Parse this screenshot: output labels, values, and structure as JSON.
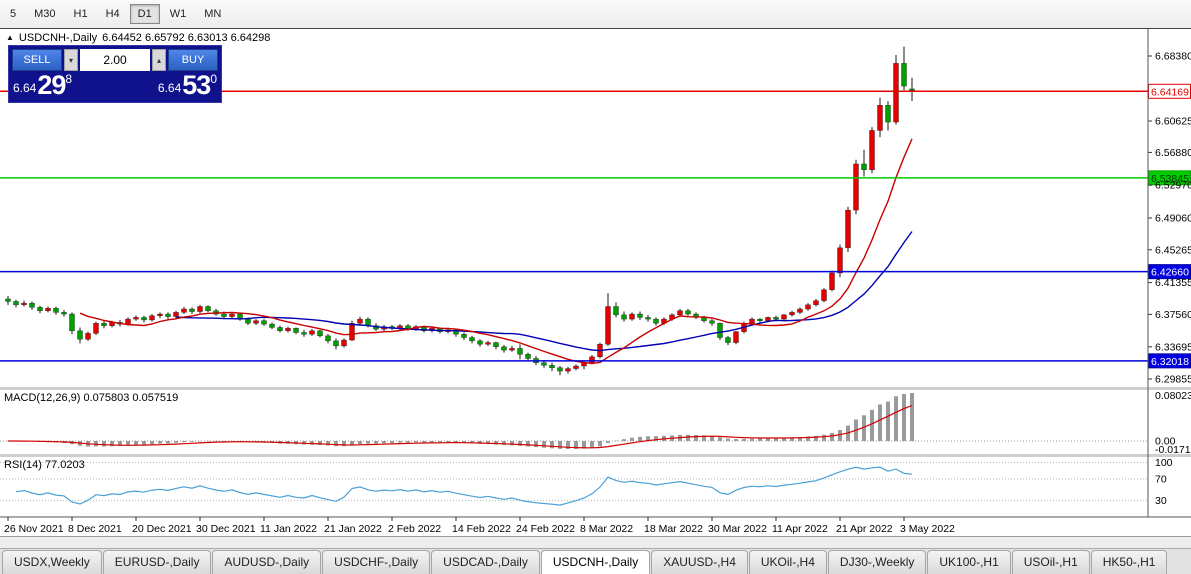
{
  "toolbar": {
    "items": [
      "5",
      "M30",
      "H1",
      "H4",
      "D1",
      "W1",
      "MN"
    ],
    "active": "D1"
  },
  "header": {
    "symbol": "USDCNH-,Daily",
    "ohlc": "6.64452 6.65792 6.63013 6.64298"
  },
  "one_click": {
    "sell_label": "SELL",
    "buy_label": "BUY",
    "volume": "2.00",
    "volume_down_icon": "▾",
    "volume_up_icon": "▴",
    "sell_price_prefix": "6.64",
    "sell_price_big": "29",
    "sell_price_sup": "8",
    "buy_price_prefix": "6.64",
    "buy_price_big": "53",
    "buy_price_sup": "0"
  },
  "tabs": {
    "labels": [
      "USDX,Weekly",
      "EURUSD-,Daily",
      "AUDUSD-,Daily",
      "USDCHF-,Daily",
      "USDCAD-,Daily",
      "USDCNH-,Daily",
      "XAUUSD-,H4",
      "UKOil-,H4",
      "DJ30-,Weekly",
      "UK100-,H1",
      "USOil-,H1",
      "HK50-,H1"
    ],
    "active_index": 5
  },
  "chart_data": {
    "type": "candlestick",
    "title": "USDCNH-,Daily",
    "last_ohlc": [
      6.64452,
      6.65792,
      6.63013,
      6.64298
    ],
    "price_range": [
      6.289,
      6.716
    ],
    "price_ticks": [
      6.6838,
      6.60625,
      6.5688,
      6.5297,
      6.4906,
      6.45265,
      6.41355,
      6.3756,
      6.33695,
      6.29855
    ],
    "hlines": [
      {
        "value": 6.64169,
        "color": "#e80000",
        "label_bg": "#ffffff",
        "label_fg": "#e80000",
        "label_border": "#e80000"
      },
      {
        "value": 6.53845,
        "color": "#00ce00",
        "label_bg": "#00ce00",
        "label_fg": "#003300",
        "label_border": "#00a000"
      },
      {
        "value": 6.4266,
        "color": "#0000e0",
        "label_bg": "#0000e0",
        "label_fg": "#ffffff",
        "label_border": "#0000a0"
      },
      {
        "value": 6.32018,
        "color": "#0000e0",
        "label_bg": "#0000e0",
        "label_fg": "#ffffff",
        "label_border": "#0000a0"
      }
    ],
    "date_ticks": [
      {
        "i": 0,
        "label": "26 Nov 2021"
      },
      {
        "i": 8,
        "label": "8 Dec 2021"
      },
      {
        "i": 16,
        "label": "20 Dec 2021"
      },
      {
        "i": 24,
        "label": "30 Dec 2021"
      },
      {
        "i": 32,
        "label": "11 Jan 2022"
      },
      {
        "i": 40,
        "label": "21 Jan 2022"
      },
      {
        "i": 48,
        "label": "2 Feb 2022"
      },
      {
        "i": 56,
        "label": "14 Feb 2022"
      },
      {
        "i": 64,
        "label": "24 Feb 2022"
      },
      {
        "i": 72,
        "label": "8 Mar 2022"
      },
      {
        "i": 80,
        "label": "18 Mar 2022"
      },
      {
        "i": 88,
        "label": "30 Mar 2022"
      },
      {
        "i": 96,
        "label": "11 Apr 2022"
      },
      {
        "i": 104,
        "label": "21 Apr 2022"
      },
      {
        "i": 112,
        "label": "3 May 2022"
      }
    ],
    "ma": {
      "fast_period": 10,
      "slow_period": 22
    },
    "macd": {
      "label": "MACD(12,26,9) 0.075803 0.057519",
      "params": [
        12,
        26,
        9
      ],
      "value": 0.075803,
      "signal": 0.057519,
      "axis_labels": [
        "0.08023",
        "0.00",
        "-0.017166"
      ]
    },
    "rsi": {
      "label": "RSI(14) 77.0203",
      "period": 14,
      "value": 77.0203,
      "levels": [
        100,
        70,
        30
      ]
    },
    "colors": {
      "up": "#e60000",
      "down": "#00a000",
      "wick": "#1a1a1a",
      "ma_fast": "#c80000",
      "ma_slow": "#0000b4",
      "macd_hist": "#9a9a9a",
      "macd_signal": "#d40000",
      "rsi": "#4aa0d8"
    },
    "candles": [
      [
        6.394,
        6.3975,
        6.387,
        6.391
      ],
      [
        6.391,
        6.393,
        6.384,
        6.387
      ],
      [
        6.387,
        6.392,
        6.385,
        6.389
      ],
      [
        6.389,
        6.391,
        6.381,
        6.384
      ],
      [
        6.384,
        6.386,
        6.377,
        6.38
      ],
      [
        6.38,
        6.385,
        6.378,
        6.383
      ],
      [
        6.383,
        6.385,
        6.375,
        6.378
      ],
      [
        6.378,
        6.381,
        6.373,
        6.376
      ],
      [
        6.376,
        6.378,
        6.352,
        6.356
      ],
      [
        6.356,
        6.36,
        6.341,
        6.346
      ],
      [
        6.346,
        6.355,
        6.344,
        6.353
      ],
      [
        6.353,
        6.367,
        6.351,
        6.365
      ],
      [
        6.365,
        6.368,
        6.359,
        6.362
      ],
      [
        6.362,
        6.368,
        6.36,
        6.366
      ],
      [
        6.366,
        6.369,
        6.361,
        6.364
      ],
      [
        6.364,
        6.372,
        6.362,
        6.37
      ],
      [
        6.37,
        6.3745,
        6.368,
        6.372
      ],
      [
        6.372,
        6.374,
        6.366,
        6.369
      ],
      [
        6.369,
        6.376,
        6.367,
        6.374
      ],
      [
        6.374,
        6.378,
        6.371,
        6.376
      ],
      [
        6.376,
        6.378,
        6.37,
        6.373
      ],
      [
        6.373,
        6.38,
        6.371,
        6.378
      ],
      [
        6.378,
        6.3845,
        6.376,
        6.382
      ],
      [
        6.382,
        6.384,
        6.376,
        6.379
      ],
      [
        6.379,
        6.387,
        6.377,
        6.385
      ],
      [
        6.385,
        6.3865,
        6.378,
        6.38
      ],
      [
        6.38,
        6.382,
        6.374,
        6.376
      ],
      [
        6.376,
        6.379,
        6.37,
        6.373
      ],
      [
        6.373,
        6.378,
        6.371,
        6.376
      ],
      [
        6.376,
        6.377,
        6.368,
        6.37
      ],
      [
        6.37,
        6.372,
        6.363,
        6.365
      ],
      [
        6.365,
        6.37,
        6.363,
        6.368
      ],
      [
        6.368,
        6.37,
        6.362,
        6.364
      ],
      [
        6.364,
        6.366,
        6.358,
        6.36
      ],
      [
        6.36,
        6.362,
        6.354,
        6.356
      ],
      [
        6.356,
        6.361,
        6.354,
        6.359
      ],
      [
        6.359,
        6.36,
        6.352,
        6.354
      ],
      [
        6.354,
        6.357,
        6.349,
        6.352
      ],
      [
        6.352,
        6.358,
        6.35,
        6.356
      ],
      [
        6.356,
        6.357,
        6.348,
        6.35
      ],
      [
        6.35,
        6.352,
        6.341,
        6.344
      ],
      [
        6.344,
        6.347,
        6.334,
        6.338
      ],
      [
        6.338,
        6.347,
        6.336,
        6.345
      ],
      [
        6.345,
        6.368,
        6.344,
        6.365
      ],
      [
        6.365,
        6.373,
        6.362,
        6.37
      ],
      [
        6.37,
        6.372,
        6.36,
        6.362
      ],
      [
        6.362,
        6.365,
        6.356,
        6.358
      ],
      [
        6.358,
        6.363,
        6.356,
        6.361
      ],
      [
        6.361,
        6.363,
        6.357,
        6.359
      ],
      [
        6.359,
        6.364,
        6.357,
        6.362
      ],
      [
        6.362,
        6.364,
        6.356,
        6.358
      ],
      [
        6.358,
        6.363,
        6.356,
        6.361
      ],
      [
        6.361,
        6.362,
        6.354,
        6.356
      ],
      [
        6.356,
        6.361,
        6.354,
        6.359
      ],
      [
        6.359,
        6.36,
        6.353,
        6.355
      ],
      [
        6.355,
        6.36,
        6.353,
        6.357
      ],
      [
        6.357,
        6.358,
        6.349,
        6.352
      ],
      [
        6.352,
        6.354,
        6.345,
        6.348
      ],
      [
        6.348,
        6.35,
        6.341,
        6.344
      ],
      [
        6.344,
        6.346,
        6.337,
        6.34
      ],
      [
        6.34,
        6.344,
        6.338,
        6.342
      ],
      [
        6.342,
        6.343,
        6.334,
        6.337
      ],
      [
        6.337,
        6.339,
        6.33,
        6.333
      ],
      [
        6.333,
        6.338,
        6.331,
        6.335
      ],
      [
        6.335,
        6.34,
        6.322,
        6.328
      ],
      [
        6.328,
        6.33,
        6.32,
        6.323
      ],
      [
        6.323,
        6.326,
        6.315,
        6.318
      ],
      [
        6.318,
        6.321,
        6.312,
        6.315
      ],
      [
        6.315,
        6.318,
        6.308,
        6.312
      ],
      [
        6.312,
        6.314,
        6.303,
        6.308
      ],
      [
        6.308,
        6.313,
        6.305,
        6.311
      ],
      [
        6.311,
        6.316,
        6.309,
        6.314
      ],
      [
        6.314,
        6.32,
        6.31,
        6.318
      ],
      [
        6.318,
        6.327,
        6.316,
        6.325
      ],
      [
        6.325,
        6.342,
        6.323,
        6.34
      ],
      [
        6.34,
        6.401,
        6.338,
        6.385
      ],
      [
        6.385,
        6.39,
        6.372,
        6.375
      ],
      [
        6.375,
        6.379,
        6.367,
        6.37
      ],
      [
        6.37,
        6.378,
        6.368,
        6.376
      ],
      [
        6.376,
        6.379,
        6.369,
        6.372
      ],
      [
        6.372,
        6.375,
        6.367,
        6.37
      ],
      [
        6.37,
        6.372,
        6.362,
        6.365
      ],
      [
        6.365,
        6.372,
        6.363,
        6.37
      ],
      [
        6.37,
        6.377,
        6.368,
        6.375
      ],
      [
        6.375,
        6.382,
        6.373,
        6.38
      ],
      [
        6.38,
        6.382,
        6.374,
        6.376
      ],
      [
        6.376,
        6.378,
        6.37,
        6.372
      ],
      [
        6.372,
        6.374,
        6.366,
        6.368
      ],
      [
        6.368,
        6.37,
        6.362,
        6.365
      ],
      [
        6.365,
        6.366,
        6.345,
        6.348
      ],
      [
        6.348,
        6.35,
        6.339,
        6.342
      ],
      [
        6.342,
        6.356,
        6.34,
        6.355
      ],
      [
        6.355,
        6.367,
        6.353,
        6.365
      ],
      [
        6.365,
        6.372,
        6.363,
        6.37
      ],
      [
        6.37,
        6.371,
        6.365,
        6.368
      ],
      [
        6.368,
        6.373,
        6.366,
        6.372
      ],
      [
        6.372,
        6.374,
        6.367,
        6.37
      ],
      [
        6.37,
        6.376,
        6.368,
        6.375
      ],
      [
        6.375,
        6.38,
        6.373,
        6.378
      ],
      [
        6.378,
        6.384,
        6.376,
        6.382
      ],
      [
        6.382,
        6.389,
        6.38,
        6.387
      ],
      [
        6.387,
        6.394,
        6.385,
        6.392
      ],
      [
        6.392,
        6.407,
        6.39,
        6.405
      ],
      [
        6.405,
        6.428,
        6.403,
        6.425
      ],
      [
        6.425,
        6.459,
        6.42,
        6.455
      ],
      [
        6.455,
        6.504,
        6.45,
        6.5
      ],
      [
        6.5,
        6.56,
        6.495,
        6.555
      ],
      [
        6.555,
        6.572,
        6.54,
        6.548
      ],
      [
        6.548,
        6.599,
        6.544,
        6.595
      ],
      [
        6.595,
        6.634,
        6.587,
        6.625
      ],
      [
        6.625,
        6.63,
        6.595,
        6.605
      ],
      [
        6.605,
        6.685,
        6.602,
        6.675
      ],
      [
        6.675,
        6.695,
        6.643,
        6.648
      ],
      [
        6.64452,
        6.65792,
        6.63013,
        6.64298
      ]
    ]
  }
}
